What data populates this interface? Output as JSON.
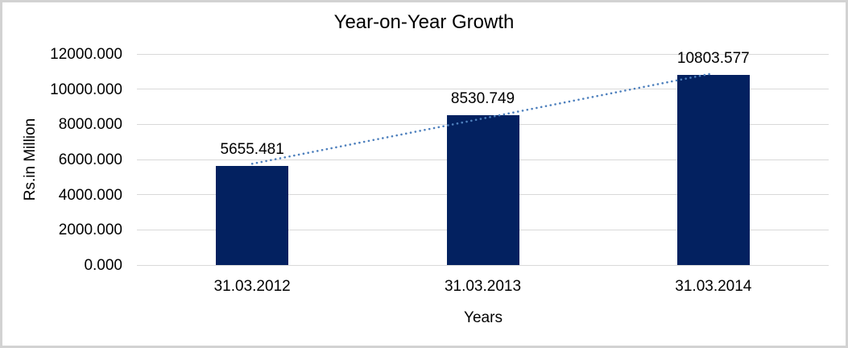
{
  "chart_data": {
    "type": "bar",
    "title": "Year-on-Year Growth",
    "xlabel": "Years",
    "ylabel": "Rs.in Million",
    "categories": [
      "31.03.2012",
      "31.03.2013",
      "31.03.2014"
    ],
    "values": [
      5655.481,
      8530.749,
      10803.577
    ],
    "data_labels": [
      "5655.481",
      "8530.749",
      "10803.577"
    ],
    "ylim": [
      0,
      12000
    ],
    "ytick_values": [
      0,
      2000,
      4000,
      6000,
      8000,
      10000,
      12000
    ],
    "ytick_labels": [
      "0.000",
      "2000.000",
      "4000.000",
      "6000.000",
      "8000.000",
      "10000.000",
      "12000.000"
    ],
    "grid": true,
    "legend": "none",
    "bar_color": "#032160",
    "trendline": {
      "type": "linear",
      "style": "dotted",
      "color": "#4e80bd"
    },
    "gridline_color": "#d9d9d9",
    "frame_border_color": "#d2d2d2",
    "background_color": "#ffffff"
  }
}
